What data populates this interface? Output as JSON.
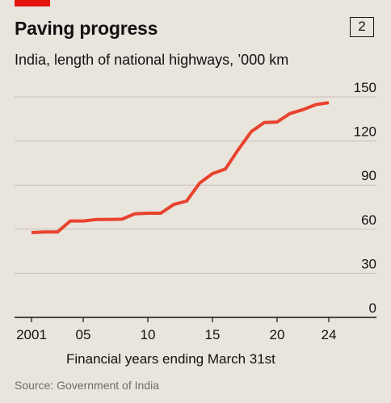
{
  "header": {
    "title": "Paving progress",
    "chart_number": "2",
    "subtitle": "India, length of national highways, ’000 km"
  },
  "footer": {
    "source": "Source: Government of India"
  },
  "colors": {
    "background": "#e9e4dc",
    "line": "#e8432d",
    "brand_tag": "#e3120b",
    "gridline": "#c6c1ba",
    "baseline": "#121212"
  },
  "chart_data": {
    "type": "line",
    "title": "Paving progress",
    "subtitle": "India, length of national highways, ’000 km",
    "xlabel": "Financial years ending March 31st",
    "ylabel": "",
    "x_ticks": [
      {
        "value": 2001,
        "label": "2001"
      },
      {
        "value": 2005,
        "label": "05"
      },
      {
        "value": 2010,
        "label": "10"
      },
      {
        "value": 2015,
        "label": "15"
      },
      {
        "value": 2020,
        "label": "20"
      },
      {
        "value": 2024,
        "label": "24"
      }
    ],
    "y_ticks": [
      0,
      30,
      60,
      90,
      120,
      150
    ],
    "xlim": [
      2000,
      2025
    ],
    "ylim": [
      0,
      150
    ],
    "grid": true,
    "y_axis_side": "right",
    "series": [
      {
        "x": [
          2001,
          2002,
          2003,
          2004,
          2005,
          2006,
          2007,
          2008,
          2009,
          2010,
          2011,
          2012,
          2013,
          2014,
          2015,
          2016,
          2017,
          2018,
          2019,
          2020,
          2021,
          2022,
          2023,
          2024
        ],
        "values": [
          57.7,
          58.1,
          58.1,
          65.6,
          65.6,
          66.6,
          66.6,
          66.8,
          70.5,
          70.9,
          70.9,
          76.8,
          79.1,
          91.3,
          97.8,
          101.0,
          114.2,
          126.4,
          132.5,
          132.9,
          138.7,
          141.3,
          144.8,
          146.1
        ]
      }
    ]
  }
}
